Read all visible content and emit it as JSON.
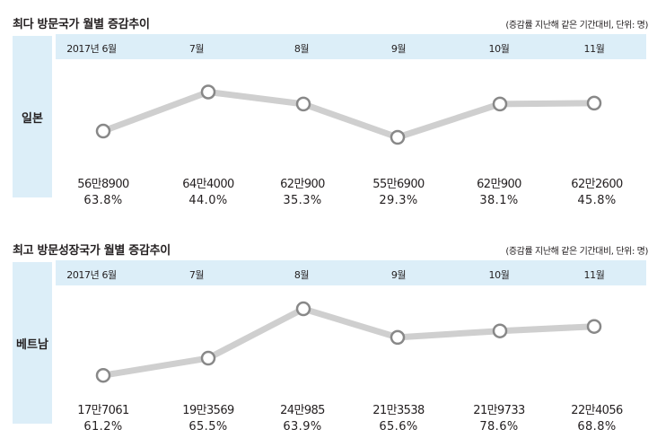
{
  "chart_data": [
    {
      "type": "line",
      "title": "최다 방문국가 월별 증감추이",
      "note": "(증감률 지난해 같은 기간대비, 단위: 명)",
      "series_label": "일본",
      "categories": [
        "2017년 6월",
        "7월",
        "8월",
        "9월",
        "10월",
        "11월"
      ],
      "values": [
        568900,
        644000,
        620900,
        556900,
        620900,
        622600
      ],
      "value_labels": [
        "56만8900",
        "64만4000",
        "62만900",
        "55만6900",
        "62만900",
        "62만2600"
      ],
      "growth_labels": [
        "63.8%",
        "44.0%",
        "35.3%",
        "29.3%",
        "38.1%",
        "45.8%"
      ],
      "ylim": [
        500000,
        700000
      ]
    },
    {
      "type": "line",
      "title": "최고 방문성장국가 월별 증감추이",
      "note": "(증감률 지난해 같은 기간대비, 단위: 명)",
      "series_label": "베트남",
      "categories": [
        "2017년 6월",
        "7월",
        "8월",
        "9월",
        "10월",
        "11월"
      ],
      "values": [
        177061,
        193569,
        240985,
        213538,
        219733,
        224056
      ],
      "value_labels": [
        "17만7061",
        "19만3569",
        "24만985",
        "21만3538",
        "21만9733",
        "22만4056"
      ],
      "growth_labels": [
        "61.2%",
        "65.5%",
        "63.9%",
        "65.6%",
        "78.6%",
        "68.8%"
      ],
      "ylim": [
        160000,
        260000
      ]
    }
  ],
  "style": {
    "line_color": "#cfcfcf",
    "marker_stroke": "#888888",
    "band_color": "#dceef8"
  }
}
